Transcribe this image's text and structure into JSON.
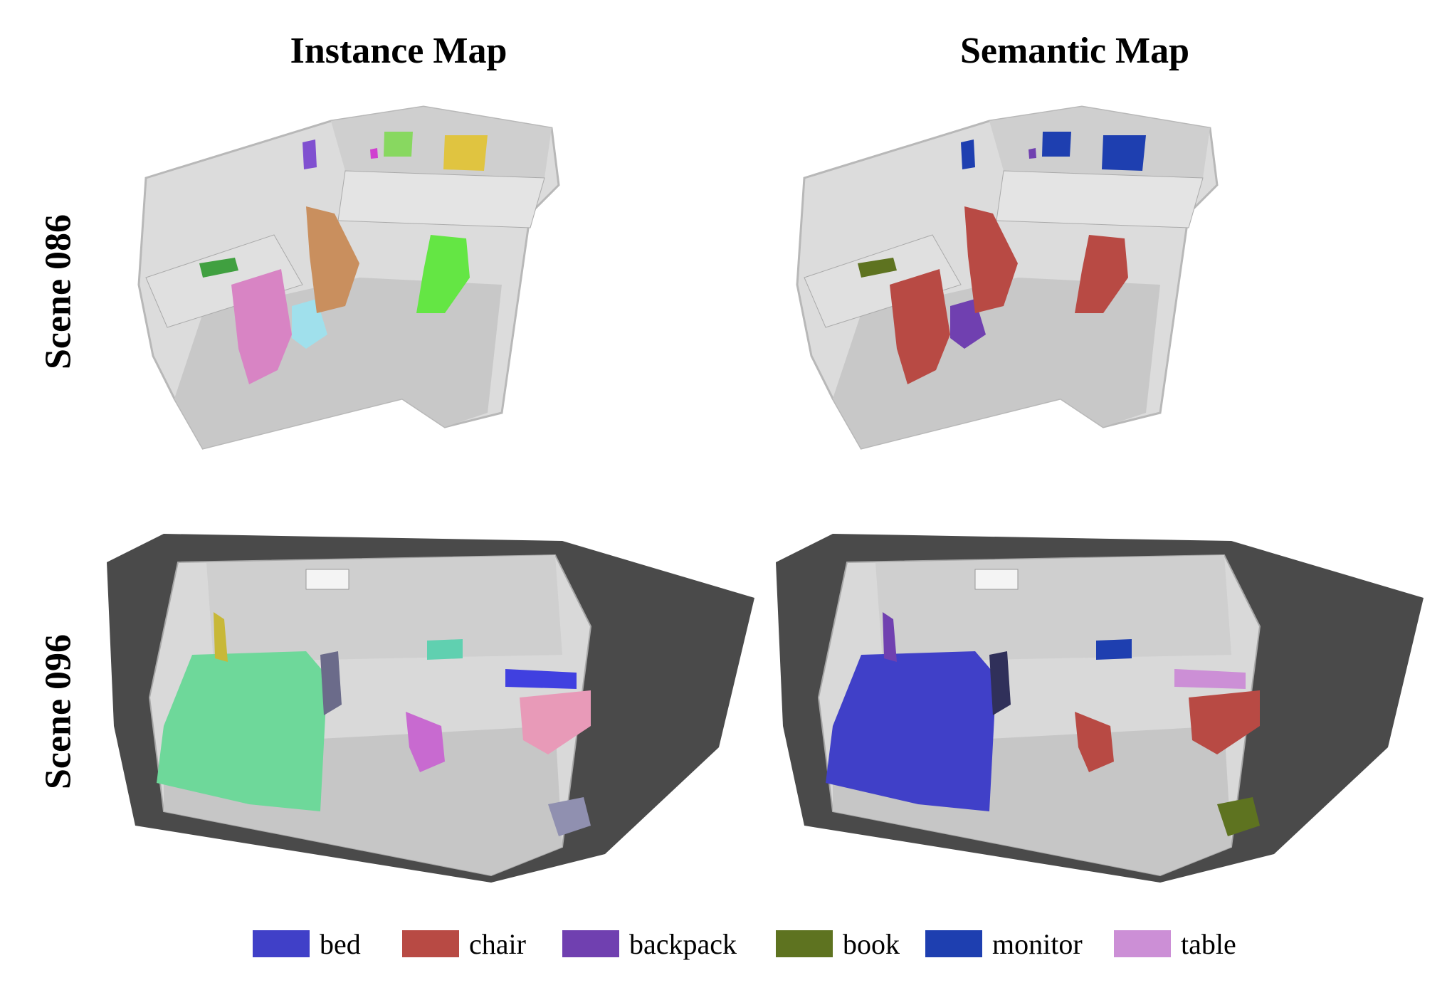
{
  "columns": {
    "instance_title": "Instance Map",
    "semantic_title": "Semantic Map"
  },
  "rows": {
    "scene_086": "Scene 086",
    "scene_096": "Scene 096"
  },
  "legend": [
    {
      "label": "bed",
      "color": "#4040c8"
    },
    {
      "label": "chair",
      "color": "#b84a44"
    },
    {
      "label": "backpack",
      "color": "#7040b0"
    },
    {
      "label": "book",
      "color": "#5e7320"
    },
    {
      "label": "monitor",
      "color": "#1e3fb0"
    },
    {
      "label": "table",
      "color": "#cc8fd6"
    }
  ],
  "colors": {
    "mesh_light": "#d9d9d9",
    "mesh_mid": "#bdbdbd",
    "mesh_dark": "#4a4a4a",
    "inst_pink": "#d884c4",
    "inst_brown": "#c98f5e",
    "inst_green": "#64e644",
    "inst_lightgreen": "#88d860",
    "inst_yellow": "#e0c440",
    "inst_purple": "#8050d0",
    "inst_cyan": "#a0e0ec",
    "inst_mint": "#6ed89a",
    "inst_teal": "#60d0b0",
    "inst_magenta": "#c86ad0",
    "inst_rose": "#e89ab8",
    "inst_blue": "#4040e0",
    "inst_olive": "#c8b838",
    "inst_slate": "#9090b0"
  }
}
